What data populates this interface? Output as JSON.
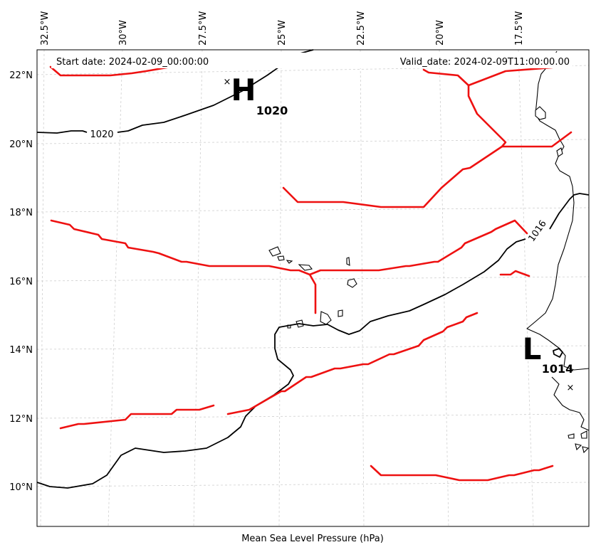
{
  "header": {
    "start_date": "Start date: 2024-02-09_00:00:00",
    "valid_date": "Valid_date: 2024-02-09T11:00:00.00"
  },
  "xlabel": "Mean Sea Level Pressure (hPa)",
  "lon_ticks": [
    "32.5°W",
    "30°W",
    "27.5°W",
    "25°W",
    "22.5°W",
    "20°W",
    "17.5°W"
  ],
  "lat_ticks": [
    "22°N",
    "20°N",
    "18°N",
    "16°N",
    "14°N",
    "12°N",
    "10°N"
  ],
  "high": {
    "letter": "H",
    "value": "1020"
  },
  "low": {
    "letter": "L",
    "value": "1014"
  },
  "isobar_labels": [
    "1020",
    "1016"
  ],
  "colors": {
    "front": "#ee1111",
    "isobar": "#000000",
    "grid": "#cfcfcf"
  }
}
